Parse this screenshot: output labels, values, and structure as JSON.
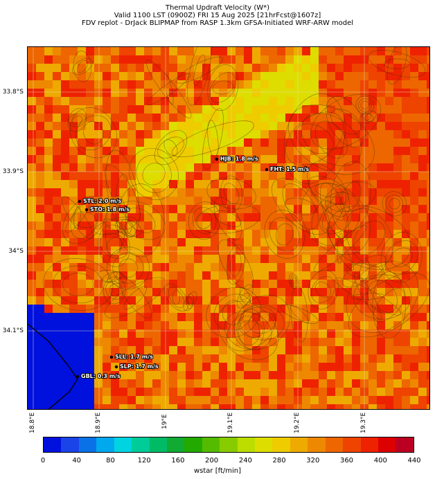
{
  "header": {
    "title": "Thermal Updraft Velocity (W*)",
    "valid": "Valid 1100 LST (0900Z) FRI 15 Aug 2025 [21hrFcst@1607z]",
    "model": "FDV replot - DrJack BLIPMAP from RASP 1.3km GFSA-Initiated WRF-ARW model"
  },
  "axes": {
    "lat_labels": [
      "33.8°S",
      "33.9°S",
      "34°S",
      "34.1°S"
    ],
    "lon_labels": [
      "18.8°E",
      "18.9°E",
      "19°E",
      "19.1°E",
      "19.2°E",
      "19.3°E"
    ]
  },
  "stations": [
    {
      "label": "HJB: 1.8 m/s",
      "code": "HJB",
      "value_ms": 1.8
    },
    {
      "label": "FHT: 1.5 m/s",
      "code": "FHT",
      "value_ms": 1.5
    },
    {
      "label": "STL: 2.0 m/s",
      "code": "STL",
      "value_ms": 2.0
    },
    {
      "label": "STO: 1.8 m/s",
      "code": "STO",
      "value_ms": 1.8
    },
    {
      "label": "SLL: 1.7 m/s",
      "code": "SLL",
      "value_ms": 1.7
    },
    {
      "label": "SLP: 1.7 m/s",
      "code": "SLP",
      "value_ms": 1.7
    },
    {
      "label": "GBL: 0.3 m/s",
      "code": "GBL",
      "value_ms": 0.3
    }
  ],
  "colorbar": {
    "ticks": [
      "0",
      "40",
      "80",
      "120",
      "160",
      "200",
      "240",
      "280",
      "320",
      "360",
      "400",
      "440"
    ],
    "unit_label": "wstar [ft/min]",
    "colors": [
      "#0011dd",
      "#1a44e8",
      "#0a72e6",
      "#00a8ee",
      "#00d4e0",
      "#00cc99",
      "#00bb66",
      "#11aa33",
      "#22aa00",
      "#55bb00",
      "#88cc00",
      "#bbdd00",
      "#dddd00",
      "#eecc00",
      "#eeaa00",
      "#ee8800",
      "#ee6600",
      "#ee4400",
      "#ee2200",
      "#dd0000",
      "#bb0022"
    ]
  }
}
